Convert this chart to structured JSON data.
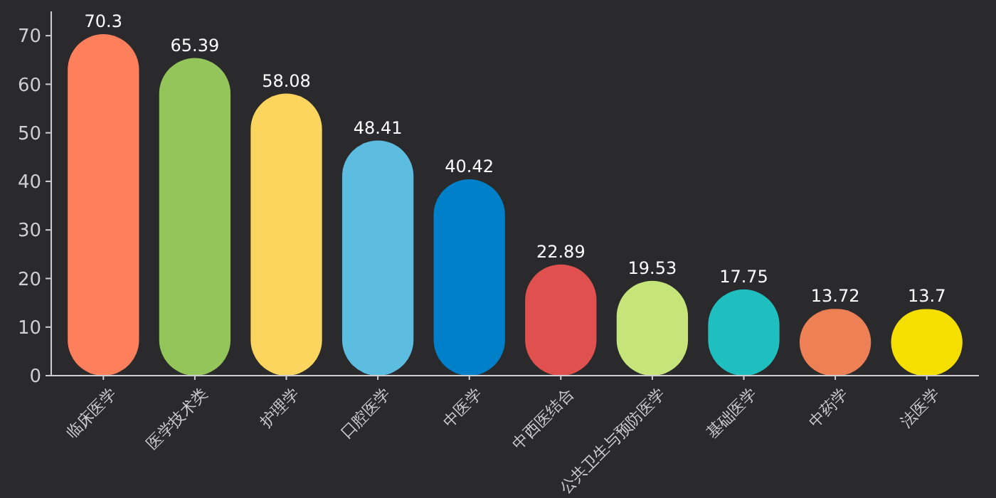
{
  "chart_data": {
    "type": "bar",
    "categories": [
      "临床医学",
      "医学技术类",
      "护理学",
      "口腔医学",
      "中医学",
      "中西医结合",
      "公共卫生与预防医学",
      "基础医学",
      "中药学",
      "法医学"
    ],
    "values": [
      70.3,
      65.39,
      58.08,
      48.41,
      40.42,
      22.89,
      19.53,
      17.75,
      13.72,
      13.7
    ],
    "colors": [
      "#fd7f5c",
      "#93c55a",
      "#fcd55f",
      "#5cbde0",
      "#0080c8",
      "#e0504f",
      "#c5e57a",
      "#20bfbf",
      "#ee8055",
      "#f5df00"
    ],
    "ylim": [
      0,
      75
    ],
    "yticks": [
      0,
      10,
      20,
      30,
      40,
      50,
      60,
      70
    ],
    "data_labels": true,
    "grid": false
  }
}
